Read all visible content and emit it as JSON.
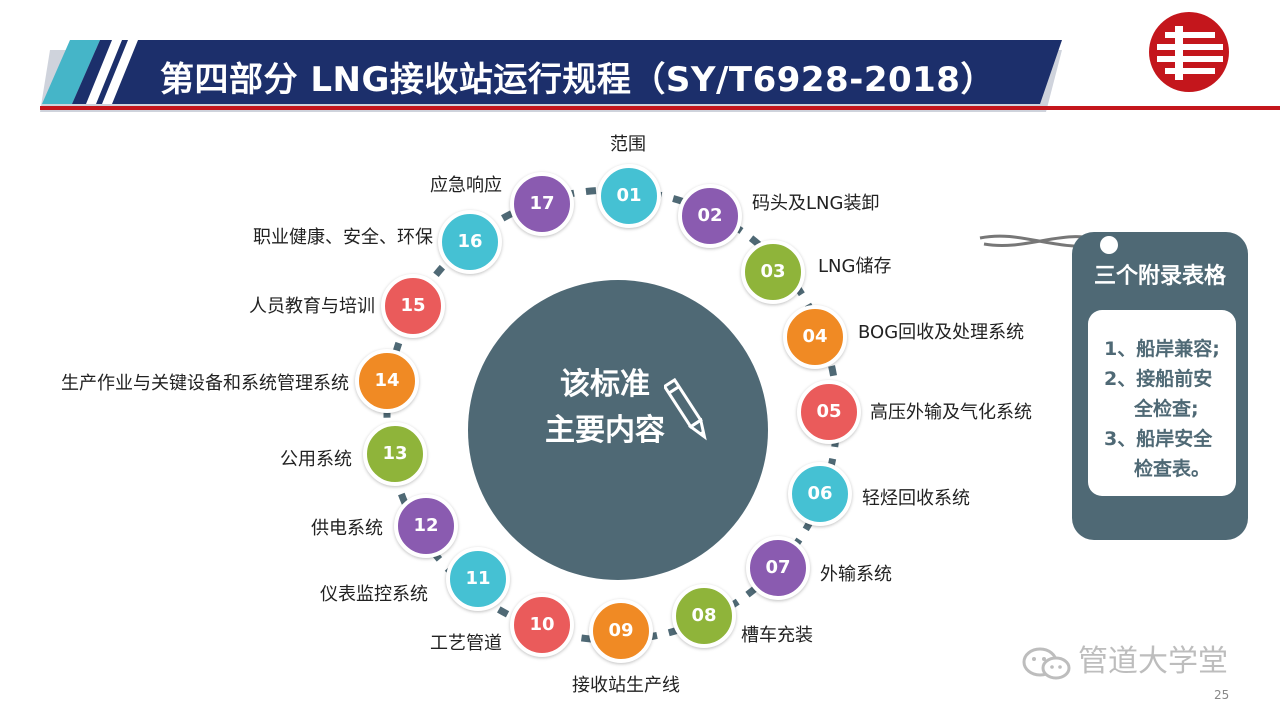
{
  "header": {
    "title": "第四部分  LNG接收站运行规程（SY/T6928-2018）"
  },
  "center": {
    "line1": "该标准",
    "line2": "主要内容"
  },
  "items": [
    {
      "num": "01",
      "label": "范围",
      "color": "#45c1d3"
    },
    {
      "num": "02",
      "label": "码头及LNG装卸",
      "color": "#8a5bb0"
    },
    {
      "num": "03",
      "label": "LNG储存",
      "color": "#8fb43a"
    },
    {
      "num": "04",
      "label": "BOG回收及处理系统",
      "color": "#f08a24"
    },
    {
      "num": "05",
      "label": "高压外输及气化系统",
      "color": "#ea5b5b"
    },
    {
      "num": "06",
      "label": "轻烃回收系统",
      "color": "#45c1d3"
    },
    {
      "num": "07",
      "label": "外输系统",
      "color": "#8a5bb0"
    },
    {
      "num": "08",
      "label": "槽车充装",
      "color": "#8fb43a"
    },
    {
      "num": "09",
      "label": "接收站生产线",
      "color": "#f08a24"
    },
    {
      "num": "10",
      "label": "工艺管道",
      "color": "#ea5b5b"
    },
    {
      "num": "11",
      "label": "仪表监控系统",
      "color": "#45c1d3"
    },
    {
      "num": "12",
      "label": "供电系统",
      "color": "#8a5bb0"
    },
    {
      "num": "13",
      "label": "公用系统",
      "color": "#8fb43a"
    },
    {
      "num": "14",
      "label": "生产作业与关键设备和系统管理系统",
      "color": "#f08a24"
    },
    {
      "num": "15",
      "label": "人员教育与培训",
      "color": "#ea5b5b"
    },
    {
      "num": "16",
      "label": "职业健康、安全、环保",
      "color": "#45c1d3"
    },
    {
      "num": "17",
      "label": "应急响应",
      "color": "#8a5bb0"
    }
  ],
  "tag": {
    "title": "三个附录表格",
    "lines": [
      "1、船岸兼容;",
      "2、接船前安",
      "全检查;",
      "3、船岸安全",
      "检查表。"
    ]
  },
  "watermark": {
    "text": "管道大学堂"
  },
  "page_number": "25",
  "colors": {
    "banner": "#1c2f6b",
    "accent": "#45b5c8",
    "red_rule": "#c4161c",
    "hub": "#4f6975"
  }
}
